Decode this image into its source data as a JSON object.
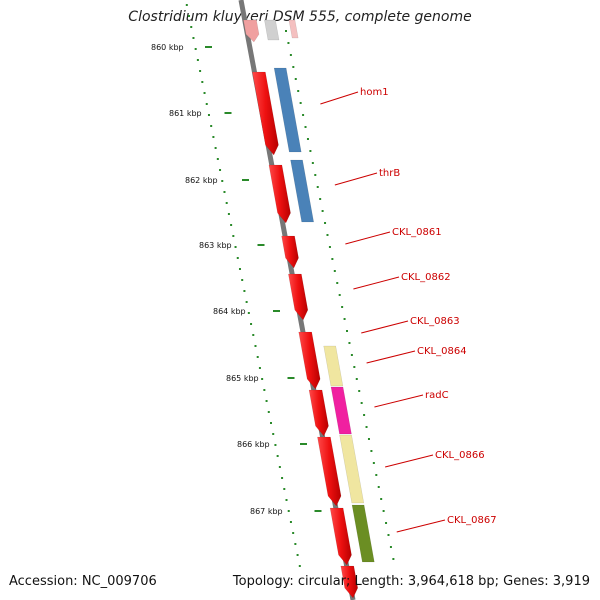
{
  "title": "Clostridium kluyveri DSM 555, complete genome",
  "accession": "Accession: NC_009706",
  "summary": "Topology: circular; Length: 3,964,618 bp; Genes: 3,919",
  "colors": {
    "backbone": "#777777",
    "tick": "#2a8a2a",
    "gene_strand": "#ee1111",
    "label": "#cc0000"
  },
  "scale_ticks": [
    "860 kbp",
    "861 kbp",
    "862 kbp",
    "863 kbp",
    "864 kbp",
    "865 kbp",
    "866 kbp",
    "867 kbp"
  ],
  "features": [
    {
      "label": "hom1",
      "color": "#4a82b8"
    },
    {
      "label": "thrB",
      "color": "#4a82b8"
    },
    {
      "label": "CKL_0861",
      "color": "#ee1111"
    },
    {
      "label": "CKL_0862",
      "color": "#ee1111"
    },
    {
      "label": "CKL_0863",
      "color": "#ee1111"
    },
    {
      "label": "CKL_0864",
      "color": "#f0e6a0"
    },
    {
      "label": "radC",
      "color": "#f020a0"
    },
    {
      "label": "CKL_0866",
      "color": "#f0e6a0"
    },
    {
      "label": "CKL_0867",
      "color": "#6b8e23"
    }
  ]
}
